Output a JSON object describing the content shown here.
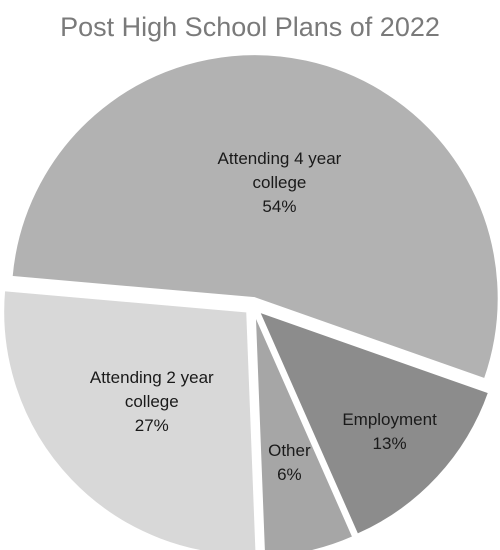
{
  "chart_data": {
    "type": "pie",
    "title": "Post High School Plans of 2022",
    "slices": [
      {
        "label_lines": [
          "Attending 4 year",
          "college"
        ],
        "value_label": "54%",
        "value": 54,
        "color": "#b2b2b2"
      },
      {
        "label_lines": [
          "Employment"
        ],
        "value_label": "13%",
        "value": 13,
        "color": "#8c8c8c"
      },
      {
        "label_lines": [
          "Other"
        ],
        "value_label": "6%",
        "value": 6,
        "color": "#a6a6a6"
      },
      {
        "label_lines": [
          "Attending 2 year",
          "college"
        ],
        "value_label": "27%",
        "value": 27,
        "color": "#d8d8d8"
      }
    ],
    "legend": "none"
  }
}
